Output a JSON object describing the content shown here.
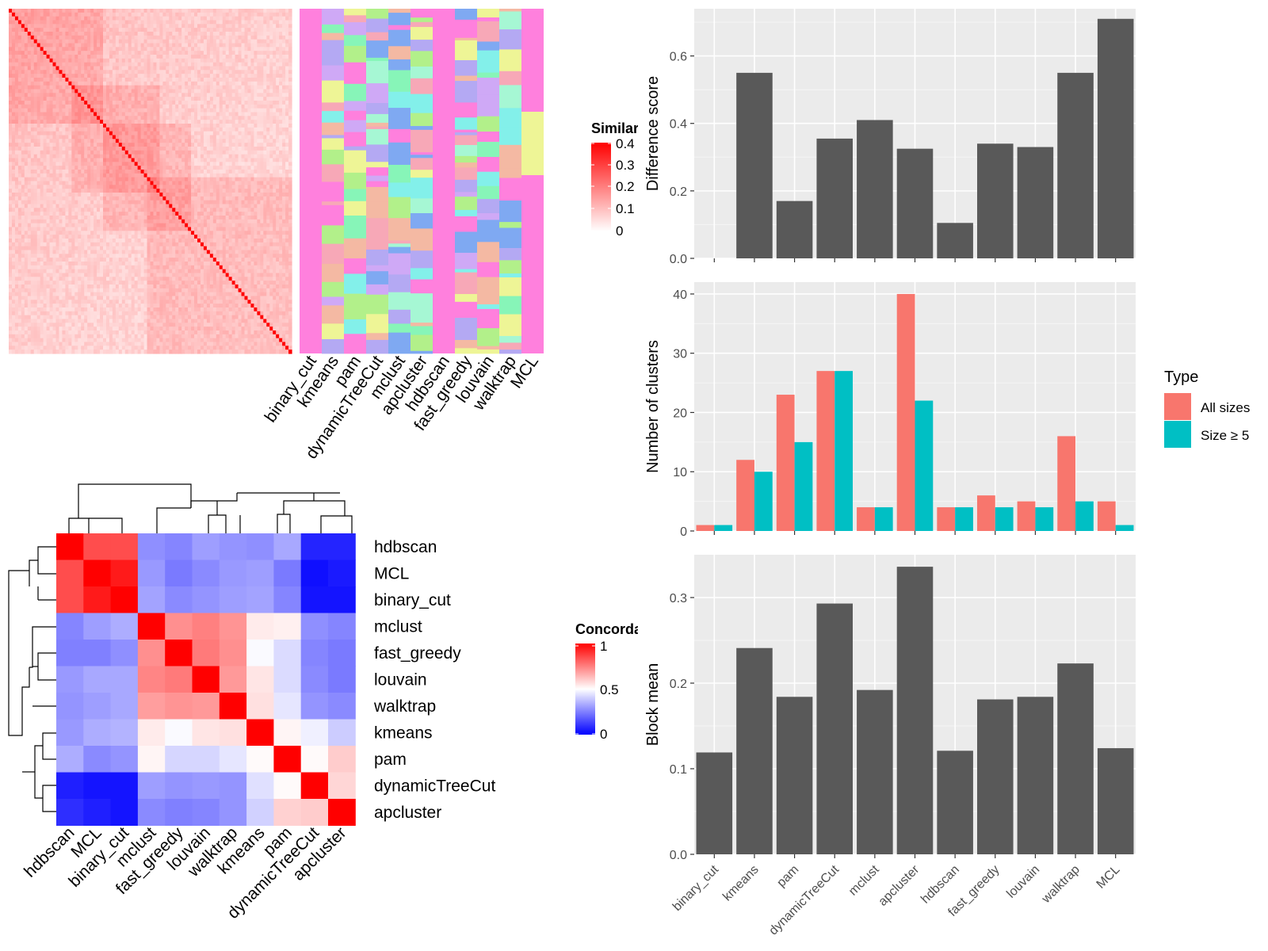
{
  "similarity_heatmap": {
    "legend_title": "Similarity",
    "legend_ticks": [
      "0.4",
      "0.3",
      "0.2",
      "0.1",
      "0"
    ],
    "colors": {
      "high": "#ff0000",
      "low": "#ffffff"
    },
    "column_labels": [
      "binary_cut",
      "kmeans",
      "pam",
      "dynamicTreeCut",
      "mclust",
      "apcluster",
      "hdbscan",
      "fast_greedy",
      "louvain",
      "walktrap",
      "MCL"
    ]
  },
  "concordance_heatmap": {
    "legend_title": "Concordance",
    "legend_ticks": [
      "1",
      "0.5",
      "0"
    ],
    "colors": {
      "high": "#ff0000",
      "mid": "#ffffff",
      "low": "#0000ff"
    },
    "row_labels": [
      "hdbscan",
      "MCL",
      "binary_cut",
      "mclust",
      "fast_greedy",
      "louvain",
      "walktrap",
      "kmeans",
      "pam",
      "dynamicTreeCut",
      "apcluster"
    ],
    "col_labels": [
      "hdbscan",
      "MCL",
      "binary_cut",
      "mclust",
      "fast_greedy",
      "louvain",
      "walktrap",
      "kmeans",
      "pam",
      "dynamicTreeCut",
      "apcluster"
    ],
    "matrix": [
      [
        1.0,
        0.85,
        0.85,
        0.28,
        0.26,
        0.31,
        0.29,
        0.28,
        0.33,
        0.07,
        0.07
      ],
      [
        0.85,
        1.0,
        0.95,
        0.3,
        0.24,
        0.27,
        0.3,
        0.31,
        0.24,
        0.03,
        0.05
      ],
      [
        0.85,
        0.95,
        1.0,
        0.32,
        0.27,
        0.29,
        0.31,
        0.32,
        0.26,
        0.04,
        0.04
      ],
      [
        0.26,
        0.31,
        0.34,
        1.0,
        0.72,
        0.75,
        0.71,
        0.54,
        0.53,
        0.28,
        0.26
      ],
      [
        0.25,
        0.25,
        0.28,
        0.72,
        1.0,
        0.76,
        0.72,
        0.49,
        0.43,
        0.26,
        0.24
      ],
      [
        0.3,
        0.33,
        0.33,
        0.74,
        0.76,
        1.0,
        0.7,
        0.55,
        0.43,
        0.27,
        0.24
      ],
      [
        0.29,
        0.31,
        0.33,
        0.69,
        0.71,
        0.7,
        1.0,
        0.56,
        0.45,
        0.29,
        0.27
      ],
      [
        0.3,
        0.34,
        0.35,
        0.54,
        0.49,
        0.55,
        0.56,
        1.0,
        0.52,
        0.47,
        0.4
      ],
      [
        0.34,
        0.27,
        0.29,
        0.52,
        0.42,
        0.42,
        0.45,
        0.51,
        1.0,
        0.51,
        0.6
      ],
      [
        0.06,
        0.04,
        0.04,
        0.31,
        0.29,
        0.3,
        0.29,
        0.44,
        0.51,
        1.0,
        0.58
      ],
      [
        0.09,
        0.06,
        0.04,
        0.27,
        0.25,
        0.26,
        0.29,
        0.41,
        0.59,
        0.6,
        1.0
      ]
    ]
  },
  "chart_data": [
    {
      "type": "bar",
      "ylabel": "Difference score",
      "categories": [
        "binary_cut",
        "kmeans",
        "pam",
        "dynamicTreeCut",
        "mclust",
        "apcluster",
        "hdbscan",
        "fast_greedy",
        "louvain",
        "walktrap",
        "MCL"
      ],
      "values": [
        0.0,
        0.55,
        0.17,
        0.355,
        0.41,
        0.325,
        0.105,
        0.34,
        0.33,
        0.55,
        0.71
      ],
      "ylim": [
        0,
        0.74
      ],
      "yticks": [
        "0.0",
        "0.2",
        "0.4",
        "0.6"
      ],
      "grid": true,
      "bar_color": "#595959"
    },
    {
      "type": "bar",
      "ylabel": "Number of clusters",
      "categories": [
        "binary_cut",
        "kmeans",
        "pam",
        "dynamicTreeCut",
        "mclust",
        "apcluster",
        "hdbscan",
        "fast_greedy",
        "louvain",
        "walktrap",
        "MCL"
      ],
      "series": [
        {
          "name": "All sizes",
          "color": "#F8766D",
          "values": [
            1,
            12,
            23,
            27,
            4,
            40,
            4,
            6,
            5,
            16,
            5
          ]
        },
        {
          "name": "Size ≥ 5",
          "color": "#00BFC4",
          "values": [
            1,
            10,
            15,
            27,
            4,
            22,
            4,
            4,
            4,
            5,
            1
          ]
        }
      ],
      "ylim": [
        0,
        42
      ],
      "yticks": [
        "0",
        "10",
        "20",
        "30",
        "40"
      ],
      "legend_title": "Type",
      "legend_position": "right",
      "grid": true
    },
    {
      "type": "bar",
      "ylabel": "Block mean",
      "categories": [
        "binary_cut",
        "kmeans",
        "pam",
        "dynamicTreeCut",
        "mclust",
        "apcluster",
        "hdbscan",
        "fast_greedy",
        "louvain",
        "walktrap",
        "MCL"
      ],
      "values": [
        0.119,
        0.241,
        0.184,
        0.293,
        0.192,
        0.336,
        0.121,
        0.181,
        0.184,
        0.223,
        0.124
      ],
      "ylim": [
        0,
        0.35
      ],
      "yticks": [
        "0.0",
        "0.1",
        "0.2",
        "0.3"
      ],
      "grid": true,
      "bar_color": "#595959"
    }
  ]
}
